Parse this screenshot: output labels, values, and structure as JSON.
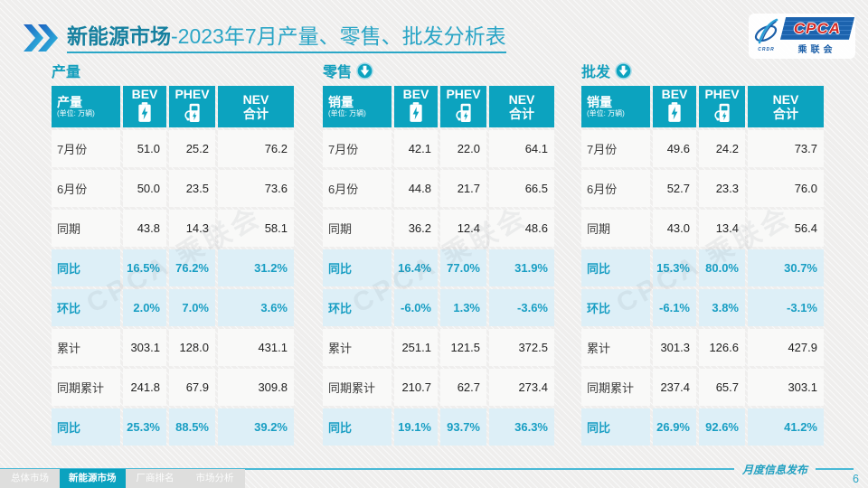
{
  "title": {
    "bold": "新能源市场",
    "rest": "-2023年7月产量、零售、批发分析表"
  },
  "logo": {
    "cpca": "CPCA",
    "cn": "乘联会",
    "small": "CRDR"
  },
  "watermark": "CPCA 乘联会",
  "tables": [
    {
      "section": "产量",
      "has_arrow": false,
      "label_header": "产量",
      "unit": "(单位: 万辆)",
      "col_bev": "BEV",
      "col_phev": "PHEV",
      "col_nev_line1": "NEV",
      "col_nev_line2": "合计",
      "rows": [
        {
          "label": "7月份",
          "bev": "51.0",
          "phev": "25.2",
          "nev": "76.2",
          "hl": false
        },
        {
          "label": "6月份",
          "bev": "50.0",
          "phev": "23.5",
          "nev": "73.6",
          "hl": false
        },
        {
          "label": "同期",
          "bev": "43.8",
          "phev": "14.3",
          "nev": "58.1",
          "hl": false
        },
        {
          "label": "同比",
          "bev": "16.5%",
          "phev": "76.2%",
          "nev": "31.2%",
          "hl": true
        },
        {
          "label": "环比",
          "bev": "2.0%",
          "phev": "7.0%",
          "nev": "3.6%",
          "hl": true
        },
        {
          "label": "累计",
          "bev": "303.1",
          "phev": "128.0",
          "nev": "431.1",
          "hl": false
        },
        {
          "label": "同期累计",
          "bev": "241.8",
          "phev": "67.9",
          "nev": "309.8",
          "hl": false
        },
        {
          "label": "同比",
          "bev": "25.3%",
          "phev": "88.5%",
          "nev": "39.2%",
          "hl": true
        }
      ]
    },
    {
      "section": "零售",
      "has_arrow": true,
      "label_header": "销量",
      "unit": "(单位: 万辆)",
      "col_bev": "BEV",
      "col_phev": "PHEV",
      "col_nev_line1": "NEV",
      "col_nev_line2": "合计",
      "rows": [
        {
          "label": "7月份",
          "bev": "42.1",
          "phev": "22.0",
          "nev": "64.1",
          "hl": false
        },
        {
          "label": "6月份",
          "bev": "44.8",
          "phev": "21.7",
          "nev": "66.5",
          "hl": false
        },
        {
          "label": "同期",
          "bev": "36.2",
          "phev": "12.4",
          "nev": "48.6",
          "hl": false
        },
        {
          "label": "同比",
          "bev": "16.4%",
          "phev": "77.0%",
          "nev": "31.9%",
          "hl": true
        },
        {
          "label": "环比",
          "bev": "-6.0%",
          "phev": "1.3%",
          "nev": "-3.6%",
          "hl": true
        },
        {
          "label": "累计",
          "bev": "251.1",
          "phev": "121.5",
          "nev": "372.5",
          "hl": false
        },
        {
          "label": "同期累计",
          "bev": "210.7",
          "phev": "62.7",
          "nev": "273.4",
          "hl": false
        },
        {
          "label": "同比",
          "bev": "19.1%",
          "phev": "93.7%",
          "nev": "36.3%",
          "hl": true
        }
      ]
    },
    {
      "section": "批发",
      "has_arrow": true,
      "label_header": "销量",
      "unit": "(单位: 万辆)",
      "col_bev": "BEV",
      "col_phev": "PHEV",
      "col_nev_line1": "NEV",
      "col_nev_line2": "合计",
      "rows": [
        {
          "label": "7月份",
          "bev": "49.6",
          "phev": "24.2",
          "nev": "73.7",
          "hl": false
        },
        {
          "label": "6月份",
          "bev": "52.7",
          "phev": "23.3",
          "nev": "76.0",
          "hl": false
        },
        {
          "label": "同期",
          "bev": "43.0",
          "phev": "13.4",
          "nev": "56.4",
          "hl": false
        },
        {
          "label": "同比",
          "bev": "15.3%",
          "phev": "80.0%",
          "nev": "30.7%",
          "hl": true
        },
        {
          "label": "环比",
          "bev": "-6.1%",
          "phev": "3.8%",
          "nev": "-3.1%",
          "hl": true
        },
        {
          "label": "累计",
          "bev": "301.3",
          "phev": "126.6",
          "nev": "427.9",
          "hl": false
        },
        {
          "label": "同期累计",
          "bev": "237.4",
          "phev": "65.7",
          "nev": "303.1",
          "hl": false
        },
        {
          "label": "同比",
          "bev": "26.9%",
          "phev": "92.6%",
          "nev": "41.2%",
          "hl": true
        }
      ]
    }
  ],
  "footer": {
    "tabs": [
      {
        "label": "总体市场",
        "active": false
      },
      {
        "label": "新能源市场",
        "active": true
      },
      {
        "label": "厂商排名",
        "active": false
      },
      {
        "label": "市场分析",
        "active": false
      }
    ],
    "right_label": "月度信息发布",
    "page_number": "6"
  },
  "colors": {
    "accent": "#0ca3bf",
    "title_dark": "#16809f",
    "title_light": "#2aa5c6",
    "highlight_bg": "#ddeff7",
    "logo_blue": "#1c63ae",
    "logo_red": "#d42a25"
  }
}
